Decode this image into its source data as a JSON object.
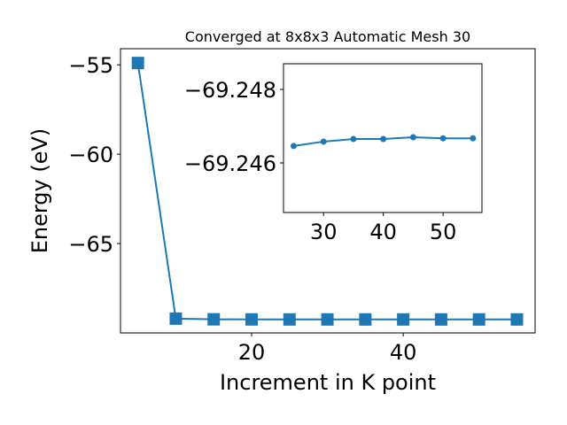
{
  "chart_data": [
    {
      "type": "line",
      "title": "Converged at 8x8x3 Automatic Mesh 30",
      "xlabel": "Increment in K point",
      "ylabel": "Energy (eV)",
      "x": [
        5,
        10,
        15,
        20,
        25,
        30,
        35,
        40,
        45,
        50,
        55
      ],
      "values": [
        -54.9,
        -69.2,
        -69.24,
        -69.245,
        -69.2465,
        -69.2466,
        -69.2467,
        -69.2467,
        -69.2467,
        -69.2467,
        -69.2467
      ],
      "color": "#1f77b4",
      "marker": "square",
      "xlim": [
        2.7,
        57.4
      ],
      "ylim": [
        -70.0,
        -54.1
      ],
      "xticks": [
        20,
        40
      ],
      "yticks": [
        {
          "value": -55,
          "label": "−55"
        },
        {
          "value": -60,
          "label": "−60"
        },
        {
          "value": -65,
          "label": "−65"
        }
      ]
    },
    {
      "type": "line",
      "x": [
        25,
        30,
        35,
        40,
        45,
        50,
        55
      ],
      "values": [
        -69.24646,
        -69.24658,
        -69.24665,
        -69.24665,
        -69.2467,
        -69.24667,
        -69.24667
      ],
      "color": "#1f77b4",
      "marker": "circle",
      "xlim": [
        23.3,
        56.5
      ],
      "ylim": [
        -69.24465,
        -69.2487
      ],
      "xticks": [
        30,
        40,
        50
      ],
      "yticks": [
        {
          "value": -69.248,
          "label": "−69.248"
        },
        {
          "value": -69.246,
          "label": "−69.246"
        }
      ]
    }
  ]
}
